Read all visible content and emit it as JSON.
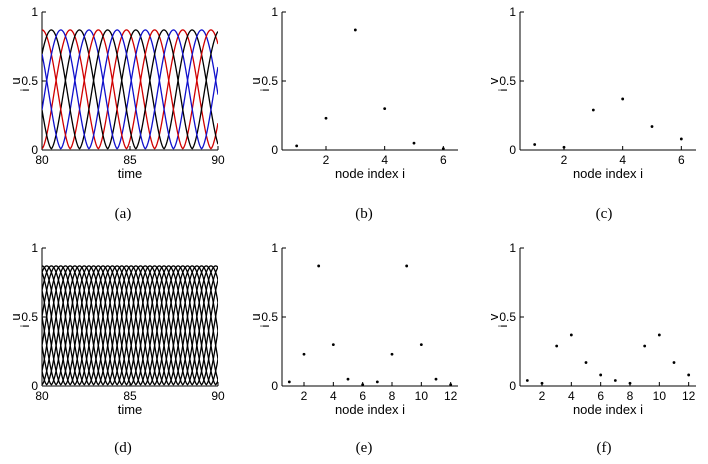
{
  "chart_data": [
    {
      "panel": "(a)",
      "type": "line",
      "xlabel": "time",
      "ylabel": "u",
      "ylabel_sub": "i",
      "xlim": [
        80,
        90
      ],
      "ylim": [
        0,
        1
      ],
      "xticks": [
        "80",
        "85",
        "90"
      ],
      "yticks": [
        "0",
        "0.5",
        "1"
      ],
      "series": [
        {
          "color": "#d00000",
          "values_desc": "pulse train, period ~3.2, peak 0.87",
          "phase": 0.0
        },
        {
          "color": "#000000",
          "phase": 0.53
        },
        {
          "color": "#1010cc",
          "phase": 1.07
        },
        {
          "color": "#d00000",
          "phase": 1.6
        },
        {
          "color": "#000000",
          "phase": 2.13
        },
        {
          "color": "#1010cc",
          "phase": 2.67
        }
      ]
    },
    {
      "panel": "(b)",
      "type": "scatter",
      "xlabel": "node index i",
      "ylabel": "u",
      "ylabel_sub": "i",
      "xlim": [
        0.5,
        6.5
      ],
      "ylim": [
        0,
        1
      ],
      "xticks": [
        "2",
        "4",
        "6"
      ],
      "yticks": [
        "0",
        "0.5",
        "1"
      ],
      "x": [
        1,
        2,
        3,
        4,
        5,
        6
      ],
      "y": [
        0.03,
        0.23,
        0.87,
        0.3,
        0.05,
        0.01
      ]
    },
    {
      "panel": "(c)",
      "type": "scatter",
      "xlabel": "node index i",
      "ylabel": "v",
      "ylabel_sub": "i",
      "xlim": [
        0.5,
        6.5
      ],
      "ylim": [
        0,
        1
      ],
      "xticks": [
        "2",
        "4",
        "6"
      ],
      "yticks": [
        "0",
        "0.5",
        "1"
      ],
      "x": [
        1,
        2,
        3,
        4,
        5,
        6
      ],
      "y": [
        0.04,
        0.02,
        0.29,
        0.37,
        0.17,
        0.08
      ]
    },
    {
      "panel": "(d)",
      "type": "line",
      "xlabel": "time",
      "ylabel": "u",
      "ylabel_sub": "i",
      "xlim": [
        80,
        90
      ],
      "ylim": [
        0,
        1
      ],
      "xticks": [
        "80",
        "85",
        "90"
      ],
      "yticks": [
        "0",
        "0.5",
        "1"
      ],
      "series_count": 12,
      "color": "#000000"
    },
    {
      "panel": "(e)",
      "type": "scatter",
      "xlabel": "node index i",
      "ylabel": "u",
      "ylabel_sub": "i",
      "xlim": [
        0.5,
        12.5
      ],
      "ylim": [
        0,
        1
      ],
      "xticks": [
        "2",
        "4",
        "6",
        "8",
        "10",
        "12"
      ],
      "yticks": [
        "0",
        "0.5",
        "1"
      ],
      "x": [
        1,
        2,
        3,
        4,
        5,
        6,
        7,
        8,
        9,
        10,
        11,
        12
      ],
      "y": [
        0.03,
        0.23,
        0.87,
        0.3,
        0.05,
        0.01,
        0.03,
        0.23,
        0.87,
        0.3,
        0.05,
        0.01
      ]
    },
    {
      "panel": "(f)",
      "type": "scatter",
      "xlabel": "node index i",
      "ylabel": "v",
      "ylabel_sub": "i",
      "xlim": [
        0.5,
        12.5
      ],
      "ylim": [
        0,
        1
      ],
      "xticks": [
        "2",
        "4",
        "6",
        "8",
        "10",
        "12"
      ],
      "yticks": [
        "0",
        "0.5",
        "1"
      ],
      "x": [
        1,
        2,
        3,
        4,
        5,
        6,
        7,
        8,
        9,
        10,
        11,
        12
      ],
      "y": [
        0.04,
        0.02,
        0.29,
        0.37,
        0.17,
        0.08,
        0.04,
        0.02,
        0.29,
        0.37,
        0.17,
        0.08
      ]
    }
  ]
}
